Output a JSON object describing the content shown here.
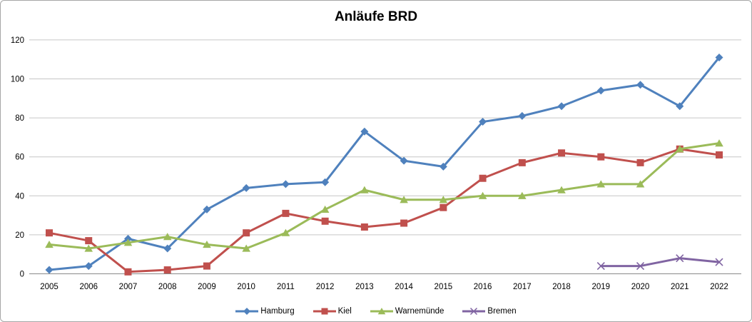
{
  "chart_data": {
    "type": "line",
    "title": "Anläufe BRD",
    "categories": [
      "2005",
      "2006",
      "2007",
      "2008",
      "2009",
      "2010",
      "2011",
      "2012",
      "2013",
      "2014",
      "2015",
      "2016",
      "2017",
      "2018",
      "2019",
      "2020",
      "2021",
      "2022"
    ],
    "series": [
      {
        "name": "Hamburg",
        "color": "#4F81BD",
        "marker": "diamond",
        "values": [
          2,
          4,
          18,
          13,
          33,
          44,
          46,
          47,
          73,
          58,
          55,
          78,
          81,
          86,
          94,
          97,
          86,
          111
        ]
      },
      {
        "name": "Kiel",
        "color": "#C0504D",
        "marker": "square",
        "values": [
          21,
          17,
          1,
          2,
          4,
          21,
          31,
          27,
          24,
          26,
          34,
          49,
          57,
          62,
          60,
          57,
          64,
          61
        ]
      },
      {
        "name": "Warnemünde",
        "color": "#9BBB59",
        "marker": "triangle",
        "values": [
          15,
          13,
          16,
          19,
          15,
          13,
          21,
          33,
          43,
          38,
          38,
          40,
          40,
          43,
          46,
          46,
          64,
          67
        ]
      },
      {
        "name": "Bremen",
        "color": "#8064A2",
        "marker": "x",
        "values": [
          null,
          null,
          null,
          null,
          null,
          null,
          null,
          null,
          null,
          null,
          null,
          null,
          null,
          null,
          4,
          4,
          8,
          6
        ]
      }
    ],
    "xlabel": "",
    "ylabel": "",
    "ylim": [
      0,
      120
    ],
    "yticks": [
      0,
      20,
      40,
      60,
      80,
      100,
      120
    ],
    "grid": true,
    "legend_position": "bottom",
    "gridline_color": "#c6c6c6",
    "axis_line_color": "#898989",
    "tick_label_color": "#000000"
  }
}
